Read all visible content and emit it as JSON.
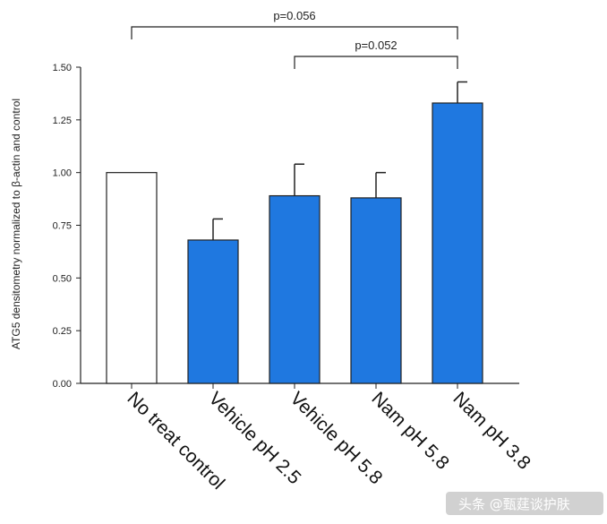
{
  "chart_data": {
    "type": "bar",
    "ylabel": "ATG5 densitometry normalized to β-actin and control",
    "ylim": [
      0,
      1.5
    ],
    "yticks": [
      "0.00",
      "0.25",
      "0.50",
      "0.75",
      "1.00",
      "1.25",
      "1.50"
    ],
    "categories": [
      "No treat control",
      "Vehicle pH 2.5",
      "Vehicle pH 5.8",
      "Nam pH 5.8",
      "Nam pH 3.8"
    ],
    "values": [
      1.0,
      0.68,
      0.89,
      0.88,
      1.33
    ],
    "errors": [
      0,
      0.1,
      0.15,
      0.12,
      0.1
    ],
    "colors": [
      "#ffffff",
      "#1f78e0",
      "#1f78e0",
      "#1f78e0",
      "#1f78e0"
    ],
    "significance": [
      {
        "from": 0,
        "to": 4,
        "label": "p=0.056"
      },
      {
        "from": 2,
        "to": 4,
        "label": "p=0.052"
      }
    ]
  },
  "watermark": "头条 @甄莛谈护肤"
}
